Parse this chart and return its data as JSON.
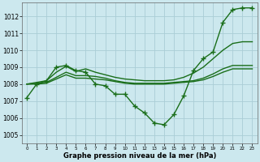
{
  "xlabel": "Graphe pression niveau de la mer (hPa)",
  "background_color": "#cce8ee",
  "grid_color": "#aacdd6",
  "line_color": "#1a6e1a",
  "marker": "+",
  "markersize": 4,
  "linewidth": 1.0,
  "ylim": [
    1004.5,
    1012.8
  ],
  "xlim": [
    -0.5,
    23.5
  ],
  "yticks": [
    1005,
    1006,
    1007,
    1008,
    1009,
    1010,
    1011,
    1012
  ],
  "xticks": [
    0,
    1,
    2,
    3,
    4,
    5,
    6,
    7,
    8,
    9,
    10,
    11,
    12,
    13,
    14,
    15,
    16,
    17,
    18,
    19,
    20,
    21,
    22,
    23
  ],
  "series_main_x": [
    0,
    1,
    2,
    3,
    4,
    5,
    6,
    7,
    8,
    9,
    10,
    11,
    12,
    13,
    14,
    15,
    16,
    17,
    18,
    19,
    20,
    21,
    22,
    23
  ],
  "series_main_y": [
    1007.2,
    1008.0,
    1008.2,
    1009.0,
    1009.1,
    1008.8,
    1008.7,
    1008.0,
    1007.9,
    1007.4,
    1007.4,
    1006.7,
    1006.3,
    1005.7,
    1005.6,
    1006.2,
    1007.3,
    1008.8,
    1009.5,
    1009.9,
    1011.65,
    1012.4,
    1012.5,
    1012.5
  ],
  "series_rise_x": [
    0,
    1,
    2,
    3,
    4,
    5,
    6,
    7,
    8,
    9,
    10,
    11,
    12,
    13,
    14,
    15,
    16,
    17,
    18,
    19,
    20,
    21,
    22,
    23
  ],
  "series_rise_y": [
    1008.0,
    1008.1,
    1008.2,
    1008.7,
    1009.05,
    1008.75,
    1008.9,
    1008.7,
    1008.55,
    1008.4,
    1008.3,
    1008.25,
    1008.2,
    1008.2,
    1008.2,
    1008.25,
    1008.4,
    1008.65,
    1009.0,
    1009.5,
    1010.0,
    1010.4,
    1010.5,
    1010.5
  ],
  "series_flat1_x": [
    0,
    1,
    2,
    3,
    4,
    5,
    6,
    7,
    8,
    9,
    10,
    11,
    12,
    13,
    14,
    15,
    16,
    17,
    18,
    19,
    20,
    21,
    22,
    23
  ],
  "series_flat1_y": [
    1008.0,
    1008.05,
    1008.1,
    1008.4,
    1008.7,
    1008.5,
    1008.5,
    1008.45,
    1008.35,
    1008.2,
    1008.1,
    1008.05,
    1008.05,
    1008.05,
    1008.05,
    1008.1,
    1008.15,
    1008.2,
    1008.35,
    1008.6,
    1008.9,
    1009.1,
    1009.1,
    1009.1
  ],
  "series_flat2_x": [
    0,
    1,
    2,
    3,
    4,
    5,
    6,
    7,
    8,
    9,
    10,
    11,
    12,
    13,
    14,
    15,
    16,
    17,
    18,
    19,
    20,
    21,
    22,
    23
  ],
  "series_flat2_y": [
    1008.0,
    1008.0,
    1008.05,
    1008.3,
    1008.55,
    1008.35,
    1008.35,
    1008.3,
    1008.25,
    1008.15,
    1008.05,
    1008.0,
    1008.0,
    1008.0,
    1008.0,
    1008.05,
    1008.1,
    1008.15,
    1008.25,
    1008.45,
    1008.7,
    1008.9,
    1008.9,
    1008.9
  ]
}
